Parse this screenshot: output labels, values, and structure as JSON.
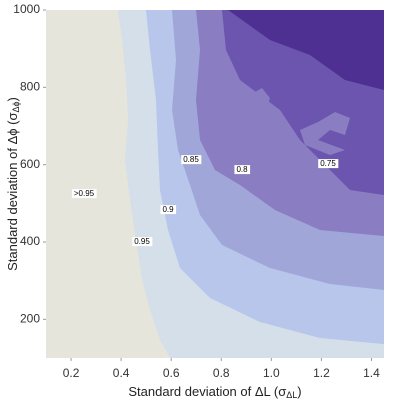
{
  "chart_data": {
    "type": "contour",
    "x_label": [
      "Standard deviation of ΔL (σ",
      "ΔL",
      ")"
    ],
    "y_label": [
      "Standard deviation of Δϕ (σ",
      "Δϕ",
      ")"
    ],
    "xlim": [
      0.1,
      1.45
    ],
    "xticks": [
      0.2,
      0.4,
      0.6,
      0.8,
      1.0,
      1.2,
      1.4
    ],
    "ylim": [
      100,
      1000
    ],
    "yticks": [
      200,
      400,
      600,
      800,
      1000
    ],
    "levels": [
      {
        "value": 0.95,
        "label": ">0.95"
      },
      0.95,
      0.9,
      0.85,
      0.8,
      0.75
    ],
    "colors": [
      "#e6e5dc",
      "#d5dfe9",
      "#b7c6ea",
      "#a1a6d9",
      "#8a7dc2",
      "#6c55ae",
      "#4e3092"
    ]
  }
}
